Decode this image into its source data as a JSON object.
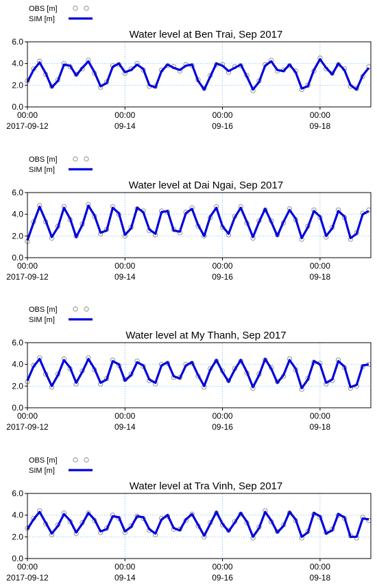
{
  "chart_data": [
    {
      "type": "line",
      "title": "Water level at Ben Trai, Sep 2017",
      "x": [
        "2017-09-12 00:00",
        "2017-09-12 03:00",
        "2017-09-12 06:00",
        "2017-09-12 09:00",
        "2017-09-12 12:00",
        "2017-09-12 15:00",
        "2017-09-12 18:00",
        "2017-09-12 21:00",
        "2017-09-13 00:00",
        "2017-09-13 03:00",
        "2017-09-13 06:00",
        "2017-09-13 09:00",
        "2017-09-13 12:00",
        "2017-09-13 15:00",
        "2017-09-13 18:00",
        "2017-09-13 21:00",
        "2017-09-14 00:00",
        "2017-09-14 03:00",
        "2017-09-14 06:00",
        "2017-09-14 09:00",
        "2017-09-14 12:00",
        "2017-09-14 15:00",
        "2017-09-14 18:00",
        "2017-09-14 21:00",
        "2017-09-15 00:00",
        "2017-09-15 03:00",
        "2017-09-15 06:00",
        "2017-09-15 09:00",
        "2017-09-15 12:00",
        "2017-09-15 15:00",
        "2017-09-15 18:00",
        "2017-09-15 21:00",
        "2017-09-16 00:00",
        "2017-09-16 03:00",
        "2017-09-16 06:00",
        "2017-09-16 09:00",
        "2017-09-16 12:00",
        "2017-09-16 15:00",
        "2017-09-16 18:00",
        "2017-09-16 21:00",
        "2017-09-17 00:00",
        "2017-09-17 03:00",
        "2017-09-17 06:00",
        "2017-09-17 09:00",
        "2017-09-17 12:00",
        "2017-09-17 15:00",
        "2017-09-17 18:00",
        "2017-09-17 21:00",
        "2017-09-18 00:00",
        "2017-09-18 03:00",
        "2017-09-18 06:00",
        "2017-09-18 09:00",
        "2017-09-18 12:00",
        "2017-09-18 15:00",
        "2017-09-18 18:00",
        "2017-09-18 21:00",
        "2017-09-19 00:00"
      ],
      "series": [
        {
          "name": "OBS [m]",
          "color": "#777777",
          "style": "markers",
          "values": [
            2.4,
            3.5,
            4.2,
            3.0,
            1.9,
            2.5,
            4.0,
            3.7,
            3.0,
            3.5,
            4.3,
            3.1,
            1.8,
            2.3,
            3.8,
            3.9,
            3.1,
            3.5,
            4.0,
            3.4,
            1.9,
            1.9,
            3.4,
            3.8,
            3.7,
            3.3,
            3.9,
            3.8,
            2.5,
            1.7,
            2.9,
            3.9,
            3.9,
            3.2,
            3.7,
            3.8,
            2.9,
            1.5,
            2.4,
            3.9,
            4.3,
            3.3,
            3.4,
            3.8,
            3.3,
            1.6,
            2.0,
            3.3,
            4.5,
            3.5,
            3.1,
            3.9,
            3.5,
            1.9,
            1.7,
            2.8,
            3.7
          ]
        },
        {
          "name": "SIM  [m]",
          "color": "#0000dd",
          "style": "line",
          "values": [
            2.3,
            3.4,
            4.1,
            3.1,
            1.8,
            2.4,
            3.9,
            3.8,
            2.9,
            3.6,
            4.2,
            3.2,
            1.9,
            2.2,
            3.7,
            4.0,
            3.2,
            3.4,
            3.9,
            3.5,
            2.0,
            1.8,
            3.3,
            3.9,
            3.6,
            3.4,
            3.8,
            3.9,
            2.4,
            1.6,
            2.8,
            4.0,
            3.8,
            3.3,
            3.6,
            3.9,
            2.8,
            1.6,
            2.3,
            3.8,
            4.2,
            3.4,
            3.3,
            3.9,
            3.2,
            1.7,
            1.9,
            3.4,
            4.4,
            3.6,
            3.0,
            4.0,
            3.4,
            2.0,
            1.6,
            2.9,
            3.6
          ]
        }
      ],
      "xlim": [
        "2017-09-12 00:00",
        "2017-09-19 01:00"
      ],
      "xticks": [
        {
          "value": "2017-09-12 00:00",
          "label": "00:00\n2017-09-12"
        },
        {
          "value": "2017-09-14 00:00",
          "label": "00:00\n09-14"
        },
        {
          "value": "2017-09-16 00:00",
          "label": "00:00\n09-16"
        },
        {
          "value": "2017-09-18 00:00",
          "label": "00:00\n09-18"
        }
      ],
      "ylim": [
        0,
        6
      ],
      "yticks": [
        {
          "value": 0,
          "label": "0.0"
        },
        {
          "value": 2,
          "label": "2.0"
        },
        {
          "value": 4,
          "label": "4.0"
        },
        {
          "value": 6,
          "label": "6.0"
        }
      ],
      "grid": true
    },
    {
      "type": "line",
      "title": "Water level at Dai Ngai, Sep 2017",
      "x": [
        "2017-09-12 00:00",
        "2017-09-12 03:00",
        "2017-09-12 06:00",
        "2017-09-12 09:00",
        "2017-09-12 12:00",
        "2017-09-12 15:00",
        "2017-09-12 18:00",
        "2017-09-12 21:00",
        "2017-09-13 00:00",
        "2017-09-13 03:00",
        "2017-09-13 06:00",
        "2017-09-13 09:00",
        "2017-09-13 12:00",
        "2017-09-13 15:00",
        "2017-09-13 18:00",
        "2017-09-13 21:00",
        "2017-09-14 00:00",
        "2017-09-14 03:00",
        "2017-09-14 06:00",
        "2017-09-14 09:00",
        "2017-09-14 12:00",
        "2017-09-14 15:00",
        "2017-09-14 18:00",
        "2017-09-14 21:00",
        "2017-09-15 00:00",
        "2017-09-15 03:00",
        "2017-09-15 06:00",
        "2017-09-15 09:00",
        "2017-09-15 12:00",
        "2017-09-15 15:00",
        "2017-09-15 18:00",
        "2017-09-15 21:00",
        "2017-09-16 00:00",
        "2017-09-16 03:00",
        "2017-09-16 06:00",
        "2017-09-16 09:00",
        "2017-09-16 12:00",
        "2017-09-16 15:00",
        "2017-09-16 18:00",
        "2017-09-16 21:00",
        "2017-09-17 00:00",
        "2017-09-17 03:00",
        "2017-09-17 06:00",
        "2017-09-17 09:00",
        "2017-09-17 12:00",
        "2017-09-17 15:00",
        "2017-09-17 18:00",
        "2017-09-17 21:00",
        "2017-09-18 00:00",
        "2017-09-18 03:00",
        "2017-09-18 06:00",
        "2017-09-18 09:00",
        "2017-09-18 12:00",
        "2017-09-18 15:00",
        "2017-09-18 18:00",
        "2017-09-18 21:00",
        "2017-09-19 00:00"
      ],
      "series": [
        {
          "name": "OBS [m]",
          "color": "#777777",
          "style": "markers",
          "values": [
            1.5,
            3.3,
            4.8,
            3.3,
            1.8,
            2.9,
            4.7,
            3.5,
            2.0,
            3.1,
            4.9,
            3.8,
            2.2,
            2.6,
            4.7,
            4.0,
            2.0,
            2.8,
            4.5,
            4.3,
            2.5,
            2.1,
            4.3,
            4.2,
            2.6,
            2.3,
            4.2,
            4.6,
            2.9,
            2.0,
            3.7,
            4.7,
            2.8,
            2.1,
            3.8,
            4.7,
            3.2,
            1.8,
            3.4,
            4.4,
            3.4,
            2.1,
            3.2,
            4.5,
            3.5,
            1.7,
            2.9,
            4.4,
            3.7,
            1.9,
            2.8,
            4.4,
            3.7,
            1.7,
            2.3,
            4.1,
            4.4
          ]
        },
        {
          "name": "SIM  [m]",
          "color": "#0000dd",
          "style": "line",
          "values": [
            1.6,
            3.2,
            4.7,
            3.4,
            1.9,
            2.8,
            4.6,
            3.6,
            1.9,
            3.0,
            4.8,
            3.9,
            2.3,
            2.5,
            4.6,
            4.1,
            2.1,
            2.7,
            4.6,
            4.2,
            2.6,
            2.2,
            4.2,
            4.3,
            2.5,
            2.4,
            4.1,
            4.5,
            3.0,
            2.0,
            3.8,
            4.6,
            2.9,
            2.2,
            3.7,
            4.6,
            3.3,
            1.9,
            3.3,
            4.5,
            3.3,
            2.0,
            3.3,
            4.4,
            3.6,
            1.8,
            2.8,
            4.3,
            3.8,
            2.0,
            2.7,
            4.3,
            3.8,
            1.8,
            2.2,
            4.0,
            4.3
          ]
        }
      ],
      "xlim": [
        "2017-09-12 00:00",
        "2017-09-19 01:00"
      ],
      "xticks": [
        {
          "value": "2017-09-12 00:00",
          "label": "00:00\n2017-09-12"
        },
        {
          "value": "2017-09-14 00:00",
          "label": "00:00\n09-14"
        },
        {
          "value": "2017-09-16 00:00",
          "label": "00:00\n09-16"
        },
        {
          "value": "2017-09-18 00:00",
          "label": "00:00\n09-18"
        }
      ],
      "ylim": [
        0,
        6
      ],
      "yticks": [
        {
          "value": 0,
          "label": "0.0"
        },
        {
          "value": 2,
          "label": "2.0"
        },
        {
          "value": 4,
          "label": "4.0"
        },
        {
          "value": 6,
          "label": "6.0"
        }
      ],
      "grid": true
    },
    {
      "type": "line",
      "title": "Water level at My Thanh, Sep 2017",
      "x": [
        "2017-09-12 00:00",
        "2017-09-12 03:00",
        "2017-09-12 06:00",
        "2017-09-12 09:00",
        "2017-09-12 12:00",
        "2017-09-12 15:00",
        "2017-09-12 18:00",
        "2017-09-12 21:00",
        "2017-09-13 00:00",
        "2017-09-13 03:00",
        "2017-09-13 06:00",
        "2017-09-13 09:00",
        "2017-09-13 12:00",
        "2017-09-13 15:00",
        "2017-09-13 18:00",
        "2017-09-13 21:00",
        "2017-09-14 00:00",
        "2017-09-14 03:00",
        "2017-09-14 06:00",
        "2017-09-14 09:00",
        "2017-09-14 12:00",
        "2017-09-14 15:00",
        "2017-09-14 18:00",
        "2017-09-14 21:00",
        "2017-09-15 00:00",
        "2017-09-15 03:00",
        "2017-09-15 06:00",
        "2017-09-15 09:00",
        "2017-09-15 12:00",
        "2017-09-15 15:00",
        "2017-09-15 18:00",
        "2017-09-15 21:00",
        "2017-09-16 00:00",
        "2017-09-16 03:00",
        "2017-09-16 06:00",
        "2017-09-16 09:00",
        "2017-09-16 12:00",
        "2017-09-16 15:00",
        "2017-09-16 18:00",
        "2017-09-16 21:00",
        "2017-09-17 00:00",
        "2017-09-17 03:00",
        "2017-09-17 06:00",
        "2017-09-17 09:00",
        "2017-09-17 12:00",
        "2017-09-17 15:00",
        "2017-09-17 18:00",
        "2017-09-17 21:00",
        "2017-09-18 00:00",
        "2017-09-18 03:00",
        "2017-09-18 06:00",
        "2017-09-18 09:00",
        "2017-09-18 12:00",
        "2017-09-18 15:00",
        "2017-09-18 18:00",
        "2017-09-18 21:00",
        "2017-09-19 00:00"
      ],
      "series": [
        {
          "name": "OBS [m]",
          "color": "#777777",
          "style": "markers",
          "values": [
            2.4,
            3.9,
            4.6,
            3.1,
            1.9,
            3.1,
            4.5,
            3.6,
            2.2,
            3.4,
            4.6,
            3.5,
            2.2,
            2.7,
            4.4,
            3.9,
            2.6,
            3.1,
            4.3,
            3.8,
            2.5,
            2.2,
            4.0,
            4.1,
            2.8,
            2.8,
            4.0,
            4.1,
            2.9,
            1.9,
            3.6,
            4.3,
            3.4,
            2.5,
            3.6,
            4.3,
            3.2,
            1.8,
            3.1,
            4.4,
            3.7,
            2.4,
            2.9,
            4.5,
            3.5,
            1.7,
            2.7,
            4.2,
            4.1,
            2.2,
            2.5,
            4.4,
            3.7,
            1.8,
            2.0,
            3.8,
            4.0
          ]
        },
        {
          "name": "SIM  [m]",
          "color": "#0000dd",
          "style": "line",
          "values": [
            2.5,
            3.8,
            4.5,
            3.2,
            2.0,
            3.0,
            4.4,
            3.7,
            2.3,
            3.3,
            4.5,
            3.6,
            2.3,
            2.6,
            4.3,
            4.0,
            2.5,
            3.0,
            4.2,
            3.9,
            2.6,
            2.3,
            3.9,
            4.2,
            2.9,
            2.7,
            3.9,
            4.2,
            3.0,
            2.0,
            3.5,
            4.4,
            3.3,
            2.4,
            3.5,
            4.4,
            3.3,
            1.9,
            3.0,
            4.5,
            3.6,
            2.3,
            3.0,
            4.4,
            3.6,
            1.8,
            2.6,
            4.3,
            4.0,
            2.3,
            2.6,
            4.3,
            3.8,
            1.9,
            2.1,
            3.9,
            4.0
          ]
        }
      ],
      "xlim": [
        "2017-09-12 00:00",
        "2017-09-19 01:00"
      ],
      "xticks": [
        {
          "value": "2017-09-12 00:00",
          "label": "00:00\n2017-09-12"
        },
        {
          "value": "2017-09-14 00:00",
          "label": "00:00\n09-14"
        },
        {
          "value": "2017-09-16 00:00",
          "label": "00:00\n09-16"
        },
        {
          "value": "2017-09-18 00:00",
          "label": "00:00\n09-18"
        }
      ],
      "ylim": [
        0,
        6
      ],
      "yticks": [
        {
          "value": 0,
          "label": "0.0"
        },
        {
          "value": 2,
          "label": "2.0"
        },
        {
          "value": 4,
          "label": "4.0"
        },
        {
          "value": 6,
          "label": "6.0"
        }
      ],
      "grid": true
    },
    {
      "type": "line",
      "title": "Water level at Tra Vinh, Sep 2017",
      "x": [
        "2017-09-12 00:00",
        "2017-09-12 03:00",
        "2017-09-12 06:00",
        "2017-09-12 09:00",
        "2017-09-12 12:00",
        "2017-09-12 15:00",
        "2017-09-12 18:00",
        "2017-09-12 21:00",
        "2017-09-13 00:00",
        "2017-09-13 03:00",
        "2017-09-13 06:00",
        "2017-09-13 09:00",
        "2017-09-13 12:00",
        "2017-09-13 15:00",
        "2017-09-13 18:00",
        "2017-09-13 21:00",
        "2017-09-14 00:00",
        "2017-09-14 03:00",
        "2017-09-14 06:00",
        "2017-09-14 09:00",
        "2017-09-14 12:00",
        "2017-09-14 15:00",
        "2017-09-14 18:00",
        "2017-09-14 21:00",
        "2017-09-15 00:00",
        "2017-09-15 03:00",
        "2017-09-15 06:00",
        "2017-09-15 09:00",
        "2017-09-15 12:00",
        "2017-09-15 15:00",
        "2017-09-15 18:00",
        "2017-09-15 21:00",
        "2017-09-16 00:00",
        "2017-09-16 03:00",
        "2017-09-16 06:00",
        "2017-09-16 09:00",
        "2017-09-16 12:00",
        "2017-09-16 15:00",
        "2017-09-16 18:00",
        "2017-09-16 21:00",
        "2017-09-17 00:00",
        "2017-09-17 03:00",
        "2017-09-17 06:00",
        "2017-09-17 09:00",
        "2017-09-17 12:00",
        "2017-09-17 15:00",
        "2017-09-17 18:00",
        "2017-09-17 21:00",
        "2017-09-18 00:00",
        "2017-09-18 03:00",
        "2017-09-18 06:00",
        "2017-09-18 09:00",
        "2017-09-18 12:00",
        "2017-09-18 15:00",
        "2017-09-18 18:00",
        "2017-09-18 21:00",
        "2017-09-19 00:00"
      ],
      "series": [
        {
          "name": "OBS [m]",
          "color": "#777777",
          "style": "markers",
          "values": [
            2.8,
            3.7,
            4.4,
            3.2,
            2.2,
            3.1,
            4.2,
            3.4,
            2.3,
            3.3,
            4.2,
            3.5,
            2.4,
            2.8,
            4.0,
            3.7,
            2.4,
            3.0,
            3.9,
            3.7,
            2.6,
            2.2,
            3.7,
            3.9,
            2.7,
            2.7,
            3.5,
            4.1,
            3.0,
            2.0,
            3.3,
            4.2,
            3.1,
            2.6,
            3.4,
            4.1,
            3.3,
            1.9,
            2.9,
            4.4,
            3.4,
            2.5,
            3.1,
            4.2,
            3.5,
            1.9,
            2.5,
            4.1,
            3.8,
            2.4,
            2.7,
            4.0,
            3.7,
            2.1,
            1.9,
            3.8,
            3.5
          ]
        },
        {
          "name": "SIM  [m]",
          "color": "#0000dd",
          "style": "line",
          "values": [
            2.7,
            3.6,
            4.3,
            3.3,
            2.3,
            3.0,
            4.1,
            3.5,
            2.4,
            3.2,
            4.2,
            3.6,
            2.5,
            2.7,
            3.9,
            3.8,
            2.5,
            2.9,
            3.9,
            3.8,
            2.7,
            2.3,
            3.6,
            4.0,
            2.8,
            2.6,
            3.6,
            4.1,
            3.1,
            2.1,
            3.2,
            4.3,
            3.2,
            2.5,
            3.3,
            4.2,
            3.4,
            2.0,
            2.8,
            4.3,
            3.5,
            2.4,
            3.0,
            4.3,
            3.6,
            2.0,
            2.4,
            4.2,
            3.9,
            2.3,
            2.6,
            4.1,
            3.8,
            2.0,
            2.0,
            3.7,
            3.6
          ]
        }
      ],
      "xlim": [
        "2017-09-12 00:00",
        "2017-09-19 01:00"
      ],
      "xticks": [
        {
          "value": "2017-09-12 00:00",
          "label": "00:00\n2017-09-12"
        },
        {
          "value": "2017-09-14 00:00",
          "label": "00:00\n09-14"
        },
        {
          "value": "2017-09-16 00:00",
          "label": "00:00\n09-16"
        },
        {
          "value": "2017-09-18 00:00",
          "label": "00:00\n09-18"
        }
      ],
      "ylim": [
        0,
        6
      ],
      "yticks": [
        {
          "value": 0,
          "label": "0.0"
        },
        {
          "value": 2,
          "label": "2.0"
        },
        {
          "value": 4,
          "label": "4.0"
        },
        {
          "value": 6,
          "label": "6.0"
        }
      ],
      "grid": true
    }
  ]
}
